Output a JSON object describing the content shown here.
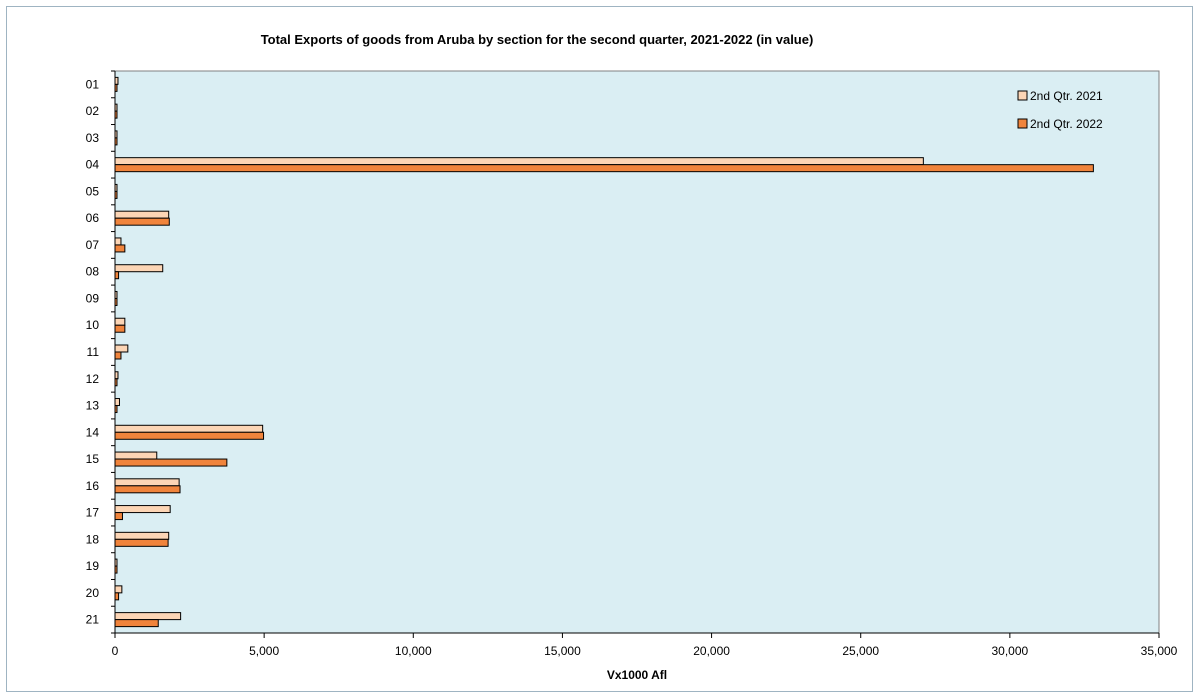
{
  "chart_data": {
    "type": "bar",
    "orientation": "horizontal",
    "title": "Total Exports of goods from Aruba by section for the second quarter, 2021-2022 (in value)",
    "xlabel": "Vx1000 Afl",
    "ylabel": "",
    "xlim": [
      0,
      35000
    ],
    "x_ticks": [
      "0",
      "5,000",
      "10,000",
      "15,000",
      "20,000",
      "25,000",
      "30,000",
      "35,000"
    ],
    "x_tick_values": [
      0,
      5000,
      10000,
      15000,
      20000,
      25000,
      30000,
      35000
    ],
    "categories": [
      "01",
      "02",
      "03",
      "04",
      "05",
      "06",
      "07",
      "08",
      "09",
      "10",
      "11",
      "12",
      "13",
      "14",
      "15",
      "16",
      "17",
      "18",
      "19",
      "20",
      "21"
    ],
    "series": [
      {
        "name": "2nd Qtr. 2021",
        "color": "#fcd5b5",
        "values": [
          100,
          30,
          40,
          27100,
          20,
          1800,
          200,
          1600,
          60,
          330,
          430,
          100,
          150,
          4950,
          1400,
          2150,
          1850,
          1800,
          20,
          230,
          2200
        ]
      },
      {
        "name": "2nd Qtr. 2022",
        "color": "#f0843c",
        "values": [
          60,
          20,
          60,
          32800,
          20,
          1820,
          330,
          120,
          40,
          330,
          200,
          50,
          40,
          4980,
          3750,
          2180,
          250,
          1780,
          30,
          120,
          1450
        ]
      }
    ],
    "legend_position": "top-right",
    "grid": false,
    "plot_background": "#daeef3"
  }
}
